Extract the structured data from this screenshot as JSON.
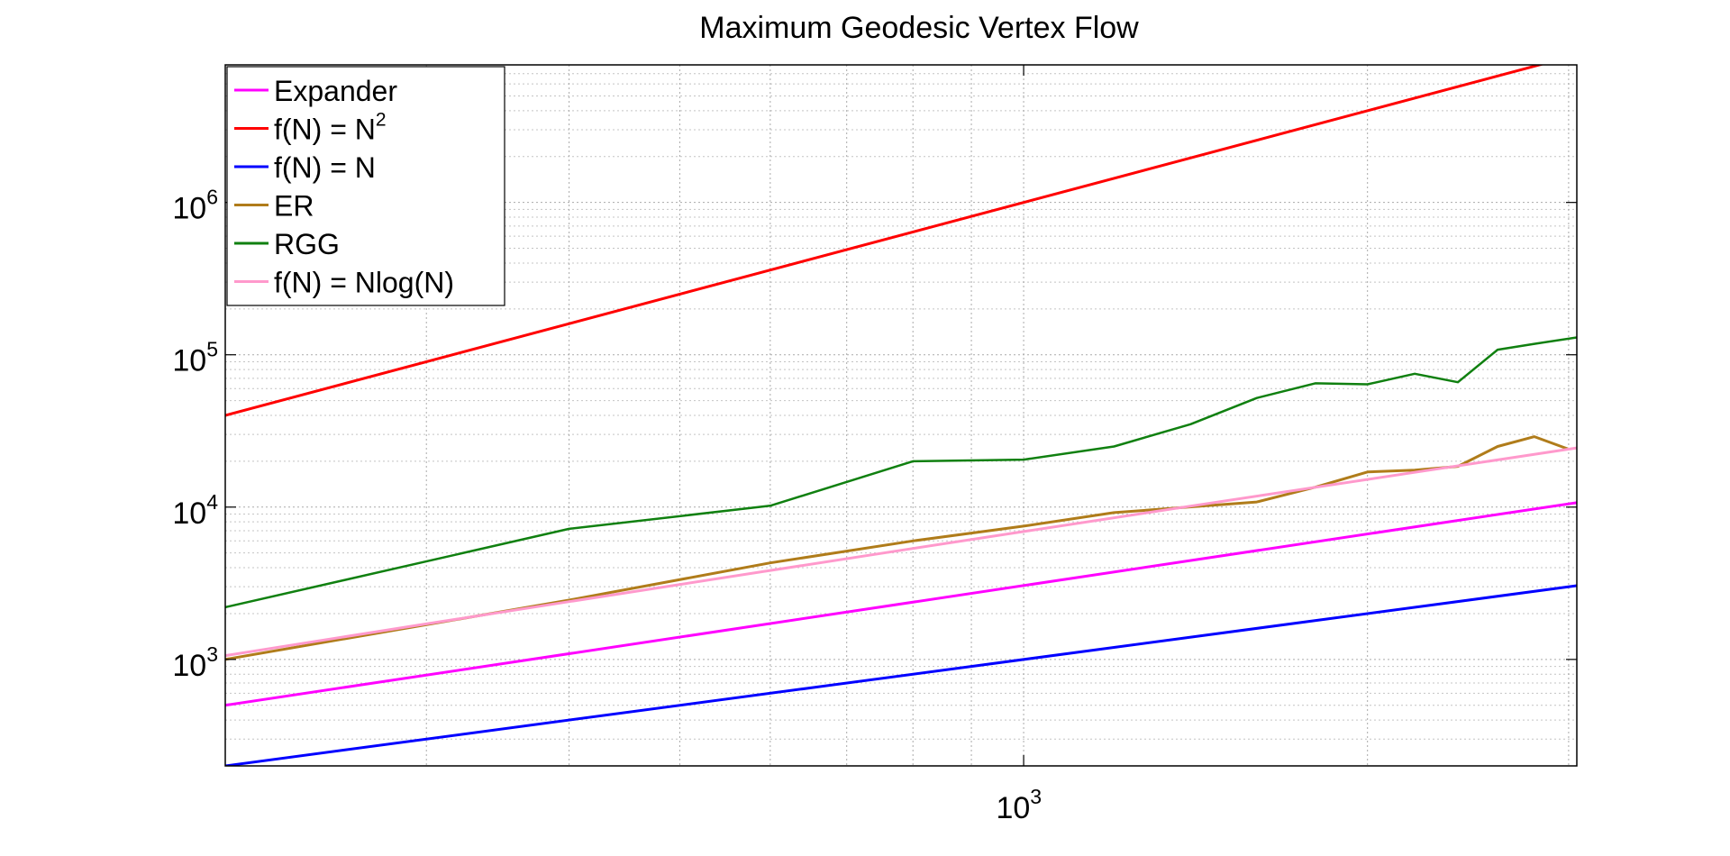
{
  "chart_data": {
    "type": "line",
    "title": "Maximum Geodesic Vertex Flow",
    "xlabel": "",
    "ylabel": "",
    "xscale": "log",
    "yscale": "log",
    "xlim": [
      200,
      3050
    ],
    "ylim": [
      200,
      8000000
    ],
    "grid": true,
    "legend_position": "top-left",
    "x_ticks": [
      {
        "base": "10",
        "exp": "3",
        "value": 1000
      }
    ],
    "y_ticks": [
      {
        "base": "10",
        "exp": "3",
        "value": 1000
      },
      {
        "base": "10",
        "exp": "4",
        "value": 10000
      },
      {
        "base": "10",
        "exp": "5",
        "value": 100000
      },
      {
        "base": "10",
        "exp": "6",
        "value": 1000000
      }
    ],
    "series": [
      {
        "name": "Expander",
        "legend_base": "Expander",
        "legend_sup": "",
        "color": "#ff00ff",
        "width": 3,
        "x": [
          200,
          3050
        ],
        "y": [
          500,
          10700
        ]
      },
      {
        "name": "f(N) = N2",
        "legend_base": "f(N) = N",
        "legend_sup": "2",
        "color": "#ff0000",
        "width": 3,
        "x": [
          200,
          3050
        ],
        "y": [
          40000,
          9300000
        ]
      },
      {
        "name": "f(N) = N",
        "legend_base": "f(N) = N",
        "legend_sup": "",
        "color": "#0000ff",
        "width": 3,
        "x": [
          200,
          3050
        ],
        "y": [
          200,
          3050
        ]
      },
      {
        "name": "ER",
        "legend_base": "ER",
        "legend_sup": "",
        "color": "#b07c1a",
        "width": 3,
        "x": [
          200,
          400,
          600,
          800,
          1000,
          1200,
          1600,
          1800,
          2000,
          2200,
          2400,
          2600,
          2800,
          3000
        ],
        "y": [
          1000,
          2450,
          4300,
          6000,
          7500,
          9200,
          10800,
          13500,
          17000,
          17500,
          18500,
          25000,
          29000,
          24000
        ]
      },
      {
        "name": "RGG",
        "legend_base": "RGG",
        "legend_sup": "",
        "color": "#108010",
        "width": 2.5,
        "x": [
          200,
          400,
          600,
          800,
          1000,
          1200,
          1400,
          1600,
          1800,
          2000,
          2200,
          2400,
          2600,
          2800,
          3050
        ],
        "y": [
          2200,
          7200,
          10200,
          20000,
          20500,
          25000,
          35000,
          52000,
          65000,
          64000,
          75000,
          66000,
          108000,
          118000,
          130000
        ]
      },
      {
        "name": "f(N) = Nlog(N)",
        "legend_base": "f(N) = Nlog(N)",
        "legend_sup": "",
        "color": "#ff99cc",
        "width": 3,
        "x": [
          200,
          300,
          400,
          600,
          800,
          1000,
          1400,
          1800,
          2200,
          2600,
          3050
        ],
        "y": [
          1060,
          1711,
          2397,
          3838,
          5348,
          6908,
          10151,
          13492,
          16915,
          20408,
          24461
        ]
      }
    ]
  }
}
